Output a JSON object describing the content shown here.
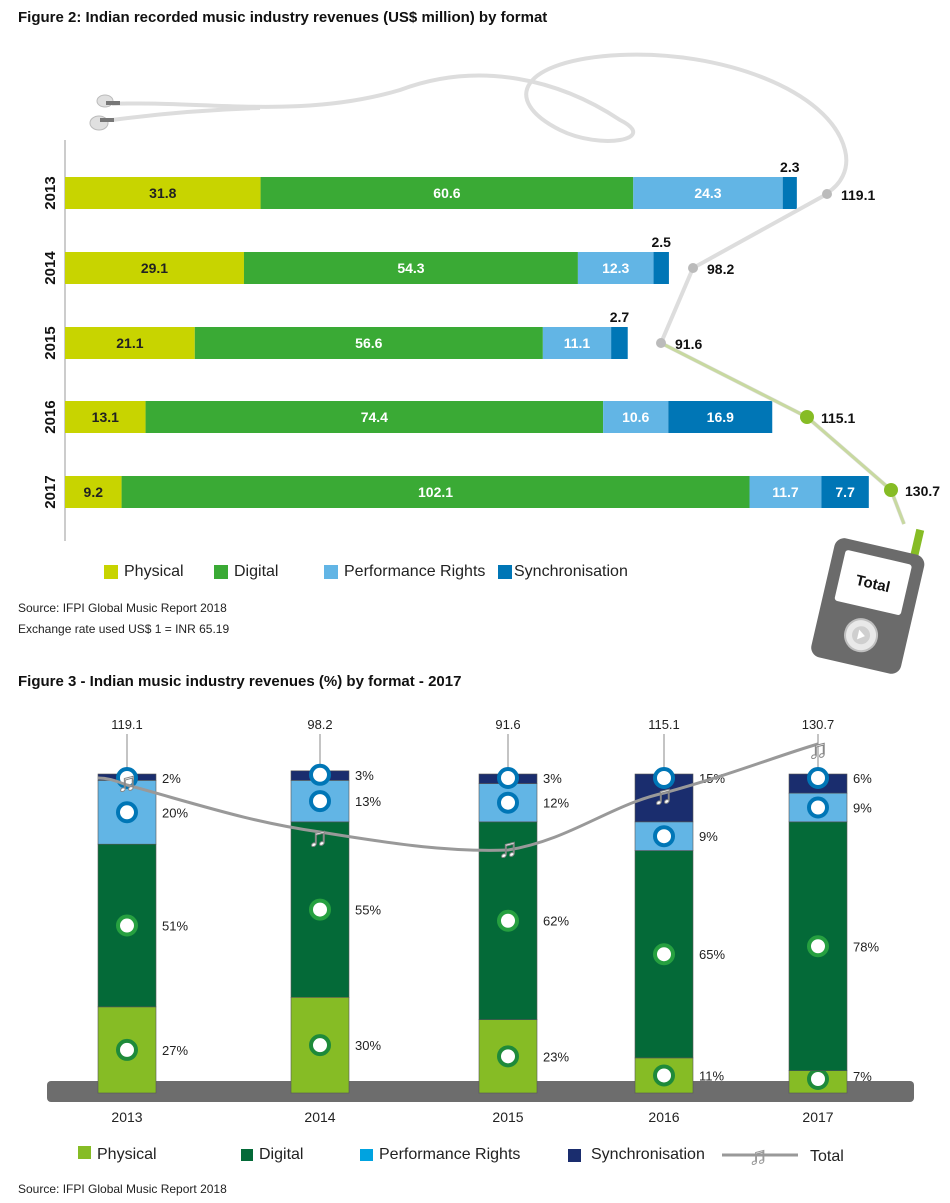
{
  "fig2": {
    "title": "Figure 2: Indian recorded music industry revenues (US$ million) by format",
    "source": "Source: IFPI Global Music Report 2018",
    "note": "Exchange rate used US$ 1 = INR 65.19",
    "device_label": "Total",
    "legend": [
      "Physical",
      "Digital",
      "Performance Rights",
      "Synchronisation"
    ]
  },
  "fig3": {
    "title": "Figure 3 - Indian music industry revenues (%) by format - 2017",
    "source": "Source: IFPI Global Music Report 2018",
    "legend": [
      "Physical",
      "Digital",
      "Performance Rights",
      "Synchronisation",
      "Total"
    ]
  },
  "colors": {
    "fig2": {
      "Physical": "#c8d400",
      "Digital": "#3aaa35",
      "Performance Rights": "#62b5e5",
      "Synchronisation": "#0076b6"
    },
    "fig3": {
      "Physical": "#86bc25",
      "Digital": "#046a38",
      "Performance Rights": "#62b5e5",
      "Synchronisation": "#1a2d6e"
    },
    "total_line": "#999999"
  },
  "chart_data": [
    {
      "type": "bar",
      "orientation": "horizontal",
      "stacked": true,
      "categories": [
        "2013",
        "2014",
        "2015",
        "2016",
        "2017"
      ],
      "series": [
        {
          "name": "Physical",
          "values": [
            31.8,
            29.1,
            21.1,
            13.1,
            9.2
          ]
        },
        {
          "name": "Digital",
          "values": [
            60.6,
            54.3,
            56.6,
            74.4,
            102.1
          ]
        },
        {
          "name": "Performance Rights",
          "values": [
            24.3,
            12.3,
            11.1,
            10.6,
            11.7
          ]
        },
        {
          "name": "Synchronisation",
          "values": [
            2.3,
            2.5,
            2.7,
            16.9,
            7.7
          ]
        }
      ],
      "totals": {
        "name": "Total",
        "values": [
          119.1,
          98.2,
          91.6,
          115.1,
          130.7
        ]
      },
      "xlim": [
        0,
        140
      ]
    },
    {
      "type": "bar",
      "stacked": true,
      "categories": [
        "2013",
        "2014",
        "2015",
        "2016",
        "2017"
      ],
      "series": [
        {
          "name": "Physical",
          "values": [
            27,
            30,
            23,
            11,
            7
          ]
        },
        {
          "name": "Digital",
          "values": [
            51,
            55,
            62,
            65,
            78
          ]
        },
        {
          "name": "Performance Rights",
          "values": [
            20,
            13,
            12,
            9,
            9
          ]
        },
        {
          "name": "Synchronisation",
          "values": [
            2,
            3,
            3,
            15,
            6
          ]
        }
      ],
      "value_suffix": "%",
      "totals": {
        "name": "Total",
        "values": [
          119.1,
          98.2,
          91.6,
          115.1,
          130.7
        ]
      }
    }
  ]
}
